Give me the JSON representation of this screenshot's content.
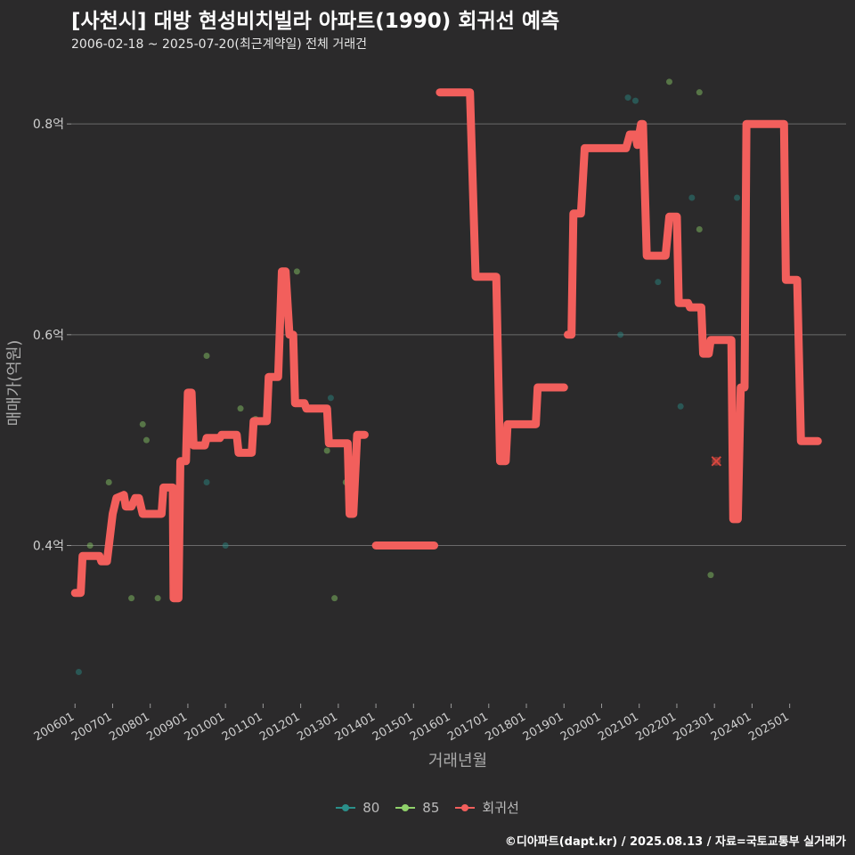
{
  "chart_data": {
    "type": "line",
    "title": "[사천시] 대방 현성비치빌라 아파트(1990) 회귀선 예측",
    "subtitle": "2006-02-18 ~ 2025-07-20(최근계약일) 전체 거래건",
    "xlabel": "거래년월",
    "ylabel": "매매가(억원)",
    "ylim": [
      0.25,
      0.85
    ],
    "xlim": [
      2005.9,
      2026.5
    ],
    "yticks": [
      0.4,
      0.6,
      0.8
    ],
    "ytick_labels": [
      "0.4억",
      "0.6억",
      "0.8억"
    ],
    "xticks": [
      2006,
      2007,
      2008,
      2009,
      2010,
      2011,
      2012,
      2013,
      2014,
      2015,
      2016,
      2017,
      2018,
      2019,
      2020,
      2021,
      2022,
      2023,
      2024,
      2025
    ],
    "xtick_labels": [
      "200601",
      "200701",
      "200801",
      "200901",
      "201001",
      "201101",
      "201201",
      "201301",
      "201401",
      "201501",
      "201601",
      "201701",
      "201801",
      "201901",
      "202001",
      "202101",
      "202201",
      "202301",
      "202401",
      "202501"
    ],
    "series": [
      {
        "name": "80",
        "kind": "scatter",
        "color": "#2a8f8a",
        "points": [
          [
            2006.1,
            0.28
          ],
          [
            2009.5,
            0.46
          ],
          [
            2010.0,
            0.4
          ],
          [
            2012.8,
            0.54
          ],
          [
            2020.5,
            0.6
          ],
          [
            2020.7,
            0.825
          ],
          [
            2020.9,
            0.822
          ],
          [
            2021.5,
            0.65
          ],
          [
            2022.1,
            0.532
          ],
          [
            2022.4,
            0.73
          ],
          [
            2023.6,
            0.73
          ]
        ]
      },
      {
        "name": "85",
        "kind": "scatter",
        "color": "#8fd16a",
        "points": [
          [
            2006.4,
            0.4
          ],
          [
            2006.9,
            0.46
          ],
          [
            2007.5,
            0.35
          ],
          [
            2007.8,
            0.515
          ],
          [
            2007.9,
            0.5
          ],
          [
            2008.2,
            0.35
          ],
          [
            2009.5,
            0.58
          ],
          [
            2010.4,
            0.53
          ],
          [
            2010.8,
            0.52
          ],
          [
            2011.9,
            0.66
          ],
          [
            2012.7,
            0.49
          ],
          [
            2012.9,
            0.35
          ],
          [
            2013.2,
            0.46
          ],
          [
            2021.8,
            0.84
          ],
          [
            2022.6,
            0.83
          ],
          [
            2022.6,
            0.7
          ],
          [
            2022.9,
            0.372
          ]
        ]
      },
      {
        "name": "회귀선",
        "kind": "line",
        "color": "#f25f5c",
        "segments": [
          [
            [
              2006.0,
              0.355
            ],
            [
              2006.15,
              0.355
            ],
            [
              2006.2,
              0.39
            ],
            [
              2006.5,
              0.39
            ],
            [
              2006.65,
              0.39
            ],
            [
              2006.7,
              0.385
            ],
            [
              2006.85,
              0.385
            ],
            [
              2007.0,
              0.43
            ],
            [
              2007.1,
              0.445
            ],
            [
              2007.3,
              0.448
            ],
            [
              2007.35,
              0.437
            ],
            [
              2007.5,
              0.437
            ],
            [
              2007.6,
              0.445
            ],
            [
              2007.7,
              0.445
            ],
            [
              2007.8,
              0.43
            ],
            [
              2008.3,
              0.43
            ],
            [
              2008.35,
              0.455
            ],
            [
              2008.5,
              0.455
            ],
            [
              2008.6,
              0.455
            ],
            [
              2008.62,
              0.35
            ],
            [
              2008.75,
              0.35
            ],
            [
              2008.8,
              0.48
            ],
            [
              2008.95,
              0.48
            ],
            [
              2009.0,
              0.545
            ],
            [
              2009.1,
              0.545
            ],
            [
              2009.15,
              0.495
            ],
            [
              2009.45,
              0.495
            ],
            [
              2009.5,
              0.502
            ],
            [
              2009.85,
              0.502
            ],
            [
              2009.9,
              0.505
            ],
            [
              2010.3,
              0.505
            ],
            [
              2010.35,
              0.488
            ],
            [
              2010.7,
              0.488
            ],
            [
              2010.75,
              0.518
            ],
            [
              2011.1,
              0.518
            ],
            [
              2011.15,
              0.56
            ],
            [
              2011.4,
              0.56
            ],
            [
              2011.5,
              0.66
            ],
            [
              2011.6,
              0.66
            ],
            [
              2011.7,
              0.6
            ],
            [
              2011.8,
              0.6
            ],
            [
              2011.85,
              0.535
            ],
            [
              2012.1,
              0.535
            ],
            [
              2012.15,
              0.53
            ],
            [
              2012.7,
              0.53
            ],
            [
              2012.75,
              0.497
            ],
            [
              2013.15,
              0.497
            ],
            [
              2013.25,
              0.497
            ],
            [
              2013.3,
              0.43
            ],
            [
              2013.4,
              0.43
            ],
            [
              2013.5,
              0.505
            ],
            [
              2013.7,
              0.505
            ]
          ],
          [
            [
              2014.0,
              0.4
            ],
            [
              2015.55,
              0.4
            ]
          ],
          [
            [
              2015.7,
              0.83
            ],
            [
              2016.5,
              0.83
            ],
            [
              2016.65,
              0.655
            ],
            [
              2017.2,
              0.655
            ],
            [
              2017.3,
              0.48
            ],
            [
              2017.45,
              0.48
            ],
            [
              2017.5,
              0.515
            ],
            [
              2018.25,
              0.515
            ],
            [
              2018.3,
              0.55
            ],
            [
              2019.0,
              0.55
            ]
          ],
          [
            [
              2019.1,
              0.6
            ],
            [
              2019.2,
              0.6
            ],
            [
              2019.25,
              0.715
            ],
            [
              2019.45,
              0.715
            ],
            [
              2019.55,
              0.777
            ],
            [
              2020.65,
              0.777
            ],
            [
              2020.75,
              0.79
            ],
            [
              2020.9,
              0.79
            ],
            [
              2020.95,
              0.78
            ],
            [
              2021.05,
              0.8
            ],
            [
              2021.1,
              0.8
            ],
            [
              2021.2,
              0.675
            ],
            [
              2021.7,
              0.675
            ],
            [
              2021.8,
              0.712
            ],
            [
              2022.0,
              0.712
            ],
            [
              2022.05,
              0.63
            ],
            [
              2022.3,
              0.63
            ],
            [
              2022.35,
              0.626
            ],
            [
              2022.65,
              0.626
            ],
            [
              2022.7,
              0.582
            ],
            [
              2022.85,
              0.582
            ],
            [
              2022.9,
              0.595
            ],
            [
              2023.45,
              0.595
            ],
            [
              2023.5,
              0.425
            ],
            [
              2023.62,
              0.425
            ],
            [
              2023.7,
              0.55
            ],
            [
              2023.8,
              0.55
            ],
            [
              2023.85,
              0.8
            ],
            [
              2024.85,
              0.8
            ],
            [
              2024.9,
              0.652
            ],
            [
              2025.2,
              0.652
            ],
            [
              2025.3,
              0.499
            ],
            [
              2025.75,
              0.499
            ]
          ]
        ]
      }
    ],
    "annotations": [
      {
        "kind": "x-marker",
        "x": 2023.05,
        "y": 0.48,
        "color": "#d9473f"
      }
    ]
  },
  "caption": "©디아파트(dapt.kr) / 2025.08.13 / 자료=국토교통부 실거래가"
}
